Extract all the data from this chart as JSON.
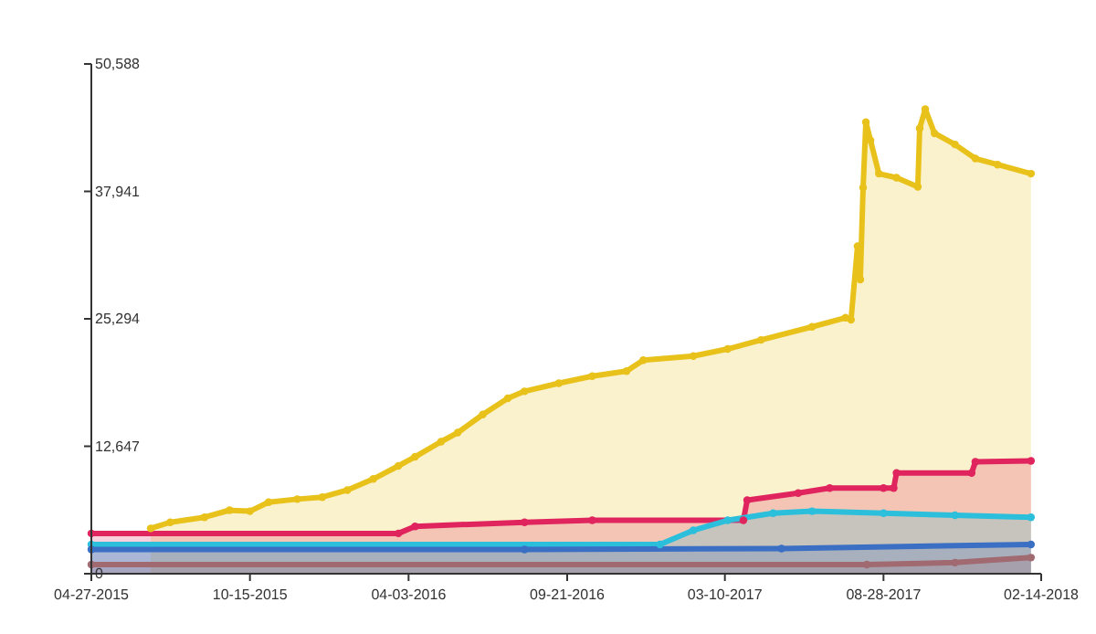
{
  "chart_data": {
    "type": "area",
    "marker": "circle",
    "grid": false,
    "xlim": [
      "2015-04-27",
      "2018-02-14"
    ],
    "xticks": [
      {
        "value": "2015-04-27",
        "label": "04-27-2015"
      },
      {
        "value": "2015-10-15",
        "label": "10-15-2015"
      },
      {
        "value": "2016-04-03",
        "label": "04-03-2016"
      },
      {
        "value": "2016-09-21",
        "label": "09-21-2016"
      },
      {
        "value": "2017-03-10",
        "label": "03-10-2017"
      },
      {
        "value": "2017-08-28",
        "label": "08-28-2017"
      },
      {
        "value": "2018-02-14",
        "label": "02-14-2018"
      }
    ],
    "ylim": [
      0,
      50588
    ],
    "yticks": [
      {
        "value": 0,
        "label": "0"
      },
      {
        "value": 12647,
        "label": "12,647"
      },
      {
        "value": 25294,
        "label": "25,294"
      },
      {
        "value": 37941,
        "label": "37,941"
      },
      {
        "value": 50588,
        "label": "50,588"
      }
    ],
    "series": [
      {
        "color": "#e8c21a",
        "x": [
          "2015-06-30",
          "2015-07-21",
          "2015-08-27",
          "2015-09-23",
          "2015-10-15",
          "2015-11-04",
          "2015-12-05",
          "2016-01-01",
          "2016-01-28",
          "2016-02-25",
          "2016-03-23",
          "2016-04-10",
          "2016-05-08",
          "2016-05-26",
          "2016-06-22",
          "2016-07-19",
          "2016-08-06",
          "2016-09-12",
          "2016-10-18",
          "2016-11-24",
          "2016-12-12",
          "2017-02-04",
          "2017-03-13",
          "2017-04-18",
          "2017-06-12",
          "2017-07-18",
          "2017-07-24",
          "2017-07-31",
          "2017-08-03",
          "2017-08-06",
          "2017-08-09",
          "2017-08-14",
          "2017-08-23",
          "2017-09-11",
          "2017-10-04",
          "2017-10-06",
          "2017-10-12",
          "2017-10-22",
          "2017-11-13",
          "2017-12-05",
          "2017-12-29",
          "2018-02-03"
        ],
        "values": [
          4500,
          5100,
          5600,
          6300,
          6200,
          7100,
          7400,
          7600,
          8300,
          9400,
          10700,
          11600,
          13100,
          14000,
          15800,
          17400,
          18100,
          18900,
          19600,
          20100,
          21200,
          21600,
          22300,
          23200,
          24500,
          25400,
          25200,
          32500,
          29200,
          38300,
          44800,
          43000,
          39700,
          39300,
          38400,
          44200,
          46100,
          43700,
          42600,
          41200,
          40600,
          39700
        ]
      },
      {
        "color": "#e0245e",
        "x": [
          "2015-04-27",
          "2016-03-23",
          "2016-04-10",
          "2016-08-06",
          "2016-10-18",
          "2017-03-30",
          "2017-04-03",
          "2017-05-28",
          "2017-07-01",
          "2017-08-28",
          "2017-09-08",
          "2017-09-11",
          "2017-12-01",
          "2017-12-05",
          "2018-02-03"
        ],
        "values": [
          4000,
          4000,
          4700,
          5100,
          5300,
          5300,
          7300,
          8000,
          8500,
          8500,
          8500,
          10000,
          10000,
          11100,
          11200
        ]
      },
      {
        "color": "#2bbfdc",
        "x": [
          "2015-04-27",
          "2016-12-30",
          "2017-02-04",
          "2017-03-13",
          "2017-05-01",
          "2017-06-12",
          "2017-08-28",
          "2017-11-13",
          "2018-02-03"
        ],
        "values": [
          2900,
          2900,
          4300,
          5300,
          6000,
          6200,
          6000,
          5800,
          5600
        ]
      },
      {
        "color": "#3a6fc4",
        "x": [
          "2015-04-27",
          "2016-08-06",
          "2017-05-10",
          "2018-02-03"
        ],
        "values": [
          2400,
          2400,
          2500,
          2900
        ]
      },
      {
        "color": "#a06a70",
        "x": [
          "2015-04-27",
          "2017-08-10",
          "2017-11-13",
          "2018-02-03"
        ],
        "values": [
          900,
          900,
          1100,
          1600
        ]
      }
    ]
  }
}
